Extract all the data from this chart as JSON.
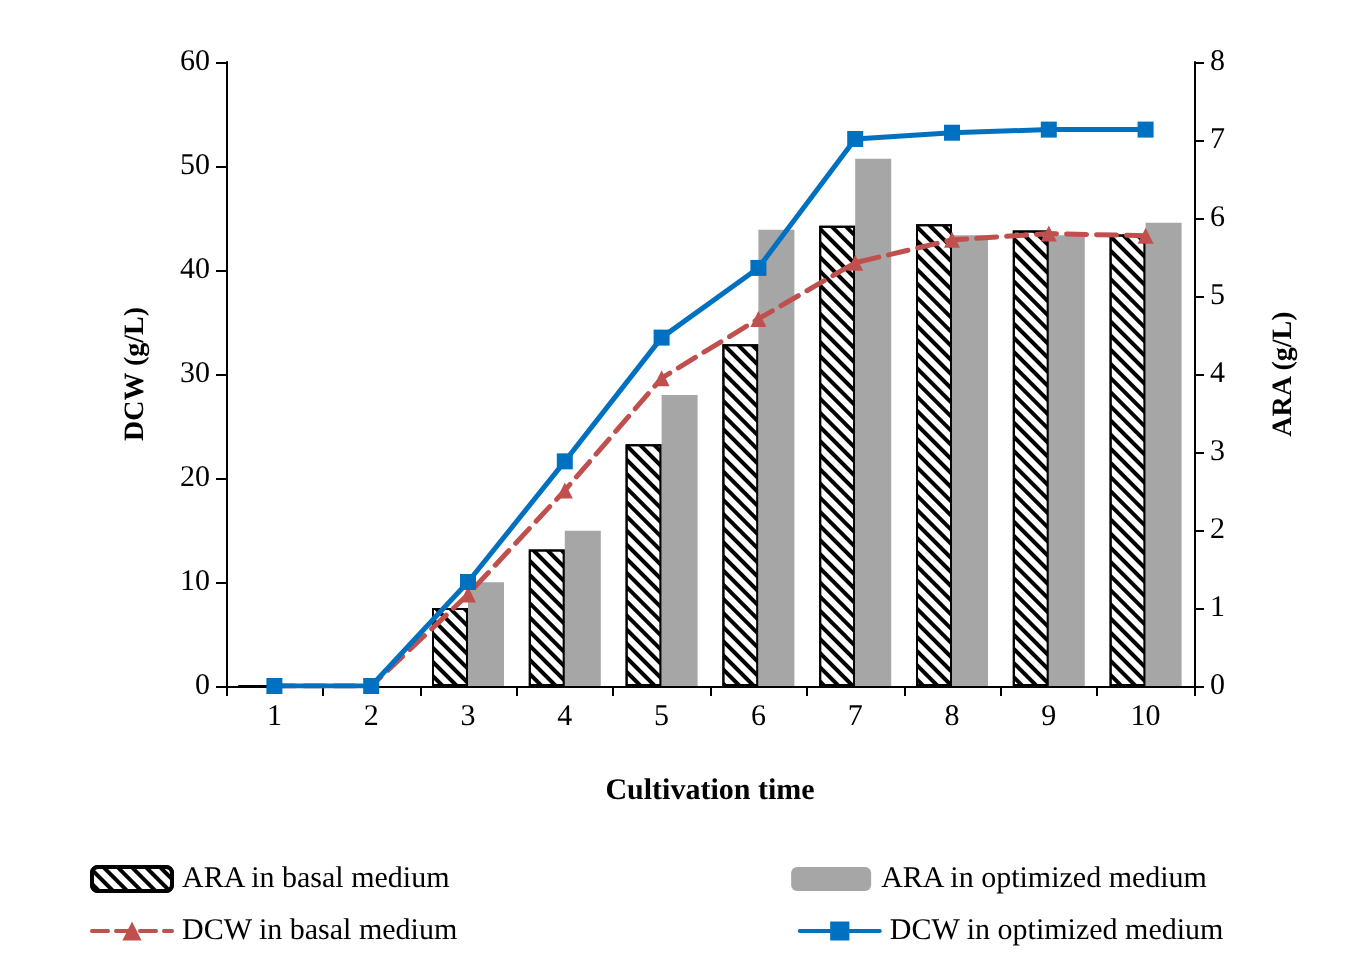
{
  "chart_data": {
    "type": "bar",
    "xlabel": "Cultivation time",
    "ylabel": "DCW (g/L)",
    "y2label": "ARA (g/L)",
    "categories": [
      "1",
      "2",
      "3",
      "4",
      "5",
      "6",
      "7",
      "8",
      "9",
      "10"
    ],
    "ylim": [
      0,
      60
    ],
    "yticks": [
      0,
      10,
      20,
      30,
      40,
      50,
      60
    ],
    "y2lim": [
      0,
      8
    ],
    "y2ticks": [
      0,
      1,
      2,
      3,
      4,
      5,
      6,
      7,
      8
    ],
    "grid": false,
    "legend": "bottom",
    "series": [
      {
        "name": "ARA in basal medium",
        "axis": "y2",
        "color": "#000000",
        "values": [
          0,
          0,
          1.0,
          1.75,
          3.1,
          4.38,
          5.9,
          5.92,
          5.84,
          5.79
        ]
      },
      {
        "name": "ARA in optimized medium",
        "axis": "y2",
        "color": "#a6a6a6",
        "values": [
          0,
          0,
          1.33,
          1.99,
          3.73,
          5.85,
          6.76,
          5.78,
          5.78,
          5.94
        ]
      },
      {
        "name": "DCW in basal medium",
        "type": "line",
        "color": "#c0504d",
        "marker": "triangle",
        "line_style": "dashed",
        "values": [
          0,
          0,
          8.8,
          18.8,
          29.6,
          35.3,
          40.7,
          42.9,
          43.5,
          43.3
        ]
      },
      {
        "name": "DCW in optimized medium",
        "type": "line",
        "color": "#0070c0",
        "marker": "square",
        "line_style": "solid",
        "values": [
          0,
          0,
          10,
          21.6,
          33.5,
          40.2,
          52.6,
          53.2,
          53.5,
          53.5
        ]
      }
    ]
  }
}
